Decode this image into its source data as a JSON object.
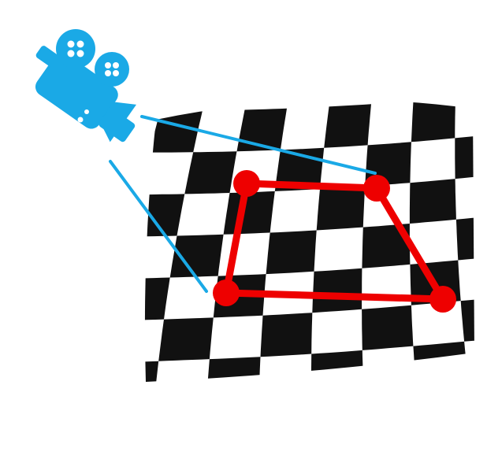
{
  "colors": {
    "background": "#ffffff",
    "checker_dark": "#111111",
    "checker_light": "#ffffff",
    "camera": "#1aa9e6",
    "sight_line": "#1aa9e6",
    "quad": "#ee0000"
  },
  "icons": {
    "camera": "movie-camera-icon"
  },
  "diagram": {
    "description_kind": "camera-projection",
    "corner_count": 4
  }
}
